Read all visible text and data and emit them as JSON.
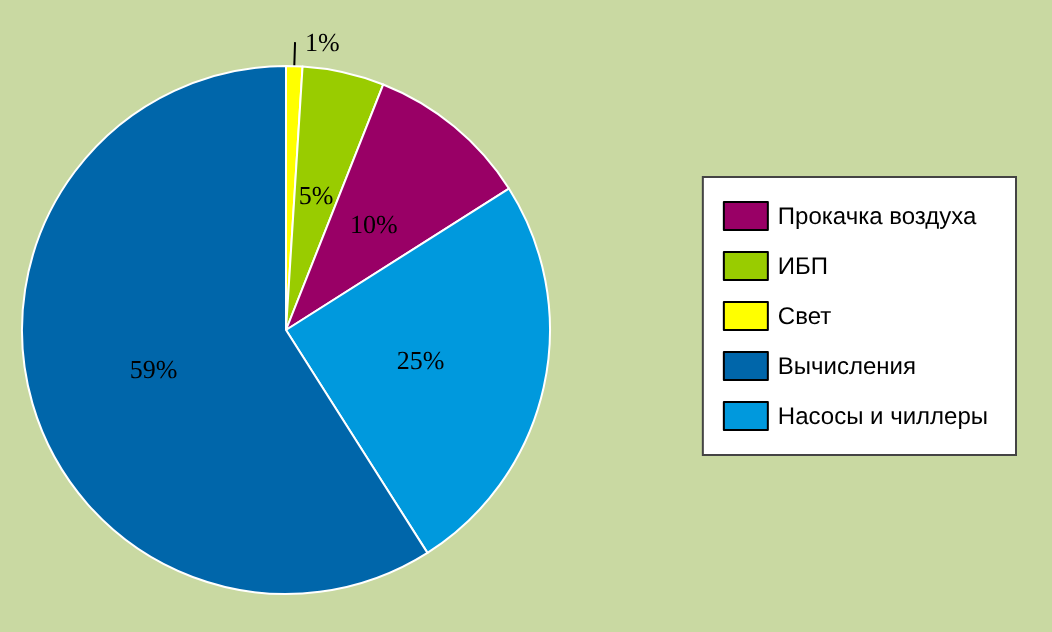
{
  "chart_data": {
    "type": "pie",
    "categories": [
      "Свет",
      "ИБП",
      "Прокачка воздуха",
      "Насосы и чиллеры",
      "Вычисления"
    ],
    "values": [
      1,
      5,
      10,
      25,
      59
    ],
    "colors": [
      "#ffff00",
      "#99cc00",
      "#990066",
      "#0099dd",
      "#0066aa"
    ],
    "value_labels": [
      "1%",
      "5%",
      "10%",
      "25%",
      "59%"
    ],
    "legend": "right"
  }
}
